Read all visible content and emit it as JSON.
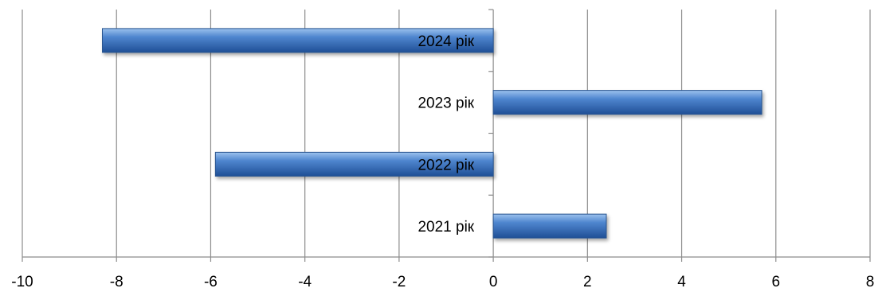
{
  "chart_data": {
    "type": "bar",
    "orientation": "horizontal",
    "categories": [
      "2021 рік",
      "2022 рік",
      "2023 рік",
      "2024 рік"
    ],
    "values": [
      2.4,
      -5.9,
      5.7,
      -8.3
    ],
    "xlim": [
      -10,
      8
    ],
    "x_ticks": [
      "-10",
      "-8",
      "-6",
      "-4",
      "-2",
      "0",
      "2",
      "4",
      "6",
      "8"
    ],
    "grid": "vertical",
    "legend": "none",
    "title": "",
    "xlabel": "",
    "ylabel": "",
    "bar_color": "#4f81bd"
  }
}
